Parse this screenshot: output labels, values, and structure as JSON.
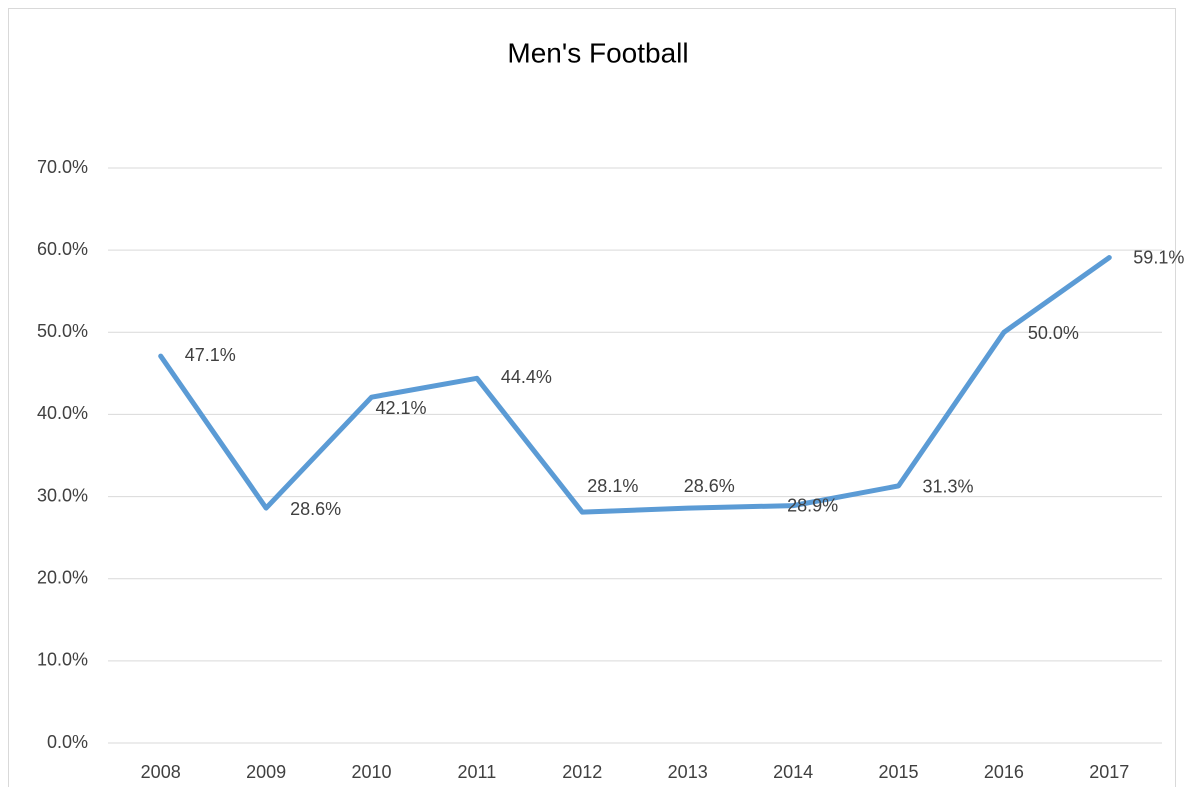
{
  "chart_data": {
    "type": "line",
    "title": "Men's Football",
    "categories": [
      "2008",
      "2009",
      "2010",
      "2011",
      "2012",
      "2013",
      "2014",
      "2015",
      "2016",
      "2017"
    ],
    "series": [
      {
        "name": "Men's Football",
        "color": "#5b9bd5",
        "values": [
          47.1,
          28.6,
          42.1,
          44.4,
          28.1,
          28.6,
          28.9,
          31.3,
          50.0,
          59.1
        ],
        "value_labels": [
          "47.1%",
          "28.6%",
          "42.1%",
          "44.4%",
          "28.1%",
          "28.6%",
          "28.9%",
          "31.3%",
          "50.0%",
          "59.1%"
        ]
      }
    ],
    "ylim": [
      0,
      70
    ],
    "yticks": [
      {
        "value": 0,
        "label": "0.0%"
      },
      {
        "value": 10,
        "label": "10.0%"
      },
      {
        "value": 20,
        "label": "20.0%"
      },
      {
        "value": 30,
        "label": "30.0%"
      },
      {
        "value": 40,
        "label": "40.0%"
      },
      {
        "value": 50,
        "label": "50.0%"
      },
      {
        "value": 60,
        "label": "60.0%"
      },
      {
        "value": 70,
        "label": "70.0%"
      }
    ],
    "grid": true
  }
}
